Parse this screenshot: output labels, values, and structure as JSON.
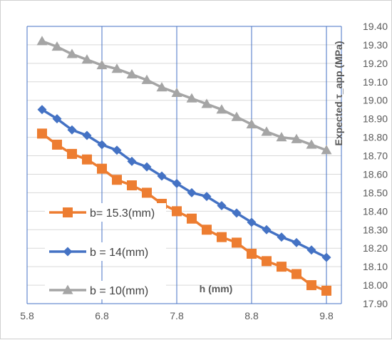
{
  "chart_data": {
    "type": "line",
    "title": "",
    "xlabel": "h (mm)",
    "ylabel": "Expected τ_app (MPa)",
    "xlim": [
      5.8,
      10.0
    ],
    "ylim": [
      17.9,
      19.4
    ],
    "x_ticks": [
      5.8,
      6.8,
      7.8,
      8.8,
      9.8
    ],
    "x_tick_labels": [
      "5.8",
      "6.8",
      "7.8",
      "8.8",
      "9.8"
    ],
    "y_ticks": [
      17.9,
      18.0,
      18.1,
      18.2,
      18.3,
      18.4,
      18.5,
      18.6,
      18.7,
      18.8,
      18.9,
      19.0,
      19.1,
      19.2,
      19.3,
      19.4
    ],
    "y_tick_labels": [
      "17.90",
      "18.00",
      "18.10",
      "18.20",
      "18.30",
      "18.40",
      "18.50",
      "18.60",
      "18.70",
      "18.80",
      "18.90",
      "19.00",
      "19.10",
      "19.20",
      "19.30",
      "19.40"
    ],
    "y_axis_side": "right",
    "grid": true,
    "legend_position": "inside bottom-left",
    "x": [
      6.0,
      6.2,
      6.4,
      6.6,
      6.8,
      7.0,
      7.2,
      7.4,
      7.6,
      7.8,
      8.0,
      8.2,
      8.4,
      8.6,
      8.8,
      9.0,
      9.2,
      9.4,
      9.6,
      9.8
    ],
    "series": [
      {
        "name": "b= 15.3(mm)",
        "color": "#ED7D31",
        "marker": "square",
        "values": [
          18.82,
          18.76,
          18.71,
          18.68,
          18.63,
          18.57,
          18.54,
          18.5,
          18.44,
          18.4,
          18.36,
          18.3,
          18.26,
          18.23,
          18.17,
          18.13,
          18.1,
          18.06,
          18.0,
          17.97
        ]
      },
      {
        "name": "b = 14(mm)",
        "color": "#4472C4",
        "marker": "diamond",
        "values": [
          18.95,
          18.9,
          18.84,
          18.81,
          18.76,
          18.73,
          18.67,
          18.64,
          18.59,
          18.55,
          18.5,
          18.48,
          18.43,
          18.39,
          18.34,
          18.3,
          18.26,
          18.23,
          18.19,
          18.15
        ]
      },
      {
        "name": "b = 10(mm)",
        "color": "#A5A5A5",
        "marker": "triangle",
        "values": [
          19.32,
          19.29,
          19.25,
          19.22,
          19.19,
          19.17,
          19.14,
          19.11,
          19.07,
          19.04,
          19.01,
          18.98,
          18.95,
          18.91,
          18.87,
          18.83,
          18.8,
          18.79,
          18.76,
          18.73
        ]
      }
    ]
  }
}
